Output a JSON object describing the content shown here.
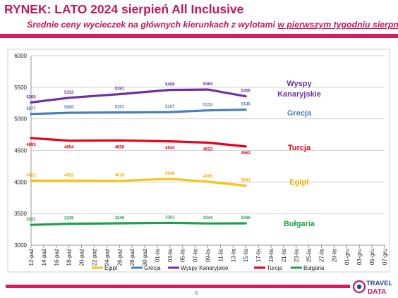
{
  "header": {
    "title": "RYNEK: LATO 2024 sierpień All Inclusive",
    "subtitle_prefix": "Średnie ceny wycieczek na głównych kierunkach z wylotami ",
    "subtitle_underlined": "w pierwszym tygodniu sierpnia"
  },
  "footer": {
    "page_number": "6",
    "logo_line1": "TRAVEL",
    "logo_line2": "DATA"
  },
  "chart_data": {
    "type": "line",
    "title": "",
    "xlabel": "",
    "ylabel": "",
    "ylim": [
      3000,
      6000
    ],
    "yticks": [
      3000,
      3500,
      4000,
      4500,
      5000,
      5500,
      6000
    ],
    "grid": true,
    "legend_position": "bottom",
    "categories": [
      "12-paź",
      "14-paź",
      "16-paź",
      "18-paź",
      "20-paź",
      "22-paź",
      "24-paź",
      "26-paź",
      "28-paź",
      "30-paź",
      "01-lis",
      "03-lis",
      "05-lis",
      "07-lis",
      "09-lis",
      "11-lis",
      "13-lis",
      "15-lis",
      "17-lis",
      "19-lis",
      "21-lis",
      "23-lis",
      "25-lis",
      "27-lis",
      "29-lis",
      "01-gru",
      "03-gru",
      "05-gru",
      "07-gru"
    ],
    "series": [
      {
        "name": "Egipt",
        "color": "#f5c518",
        "x": [
          0,
          3,
          7,
          11,
          14,
          17
        ],
        "values": [
          4022,
          4022,
          4018,
          4049,
          4005,
          3941
        ],
        "label_row": "Egipt",
        "label_color": "#f0b400",
        "data_label_color": "#e8b400"
      },
      {
        "name": "Grecja",
        "color": "#4a7ebb",
        "x": [
          0,
          3,
          7,
          11,
          14,
          17
        ],
        "values": [
          5077,
          5095,
          5101,
          5107,
          5133,
          5145
        ],
        "label_row": "Grecja",
        "label_color": "#4a7ebb",
        "data_label_color": "#4a7ebb"
      },
      {
        "name": "Wyspy Kanaryjskie",
        "color": "#7030a0",
        "x": [
          0,
          3,
          7,
          11,
          14,
          17
        ],
        "values": [
          5260,
          5333,
          5391,
          5458,
          5464,
          5356
        ],
        "label_row": "Wyspy Kanaryjskie",
        "label_color": "#7030a0",
        "data_label_color": "#7030a0"
      },
      {
        "name": "Turcja",
        "color": "#e8001c",
        "x": [
          0,
          3,
          7,
          11,
          14,
          17
        ],
        "values": [
          4695,
          4654,
          4658,
          4644,
          4623,
          4562
        ],
        "label_row": "Turcja",
        "label_color": "#e8001c",
        "data_label_color": "#e8001c"
      },
      {
        "name": "Bułgaria",
        "color": "#1ea04b",
        "x": [
          0,
          3,
          7,
          11,
          14,
          17
        ],
        "values": [
          3321,
          3339,
          3346,
          3353,
          3344,
          3346
        ],
        "label_row": "Bułgaria",
        "label_color": "#1ea04b",
        "data_label_color": "#1ea04b"
      }
    ],
    "side_labels": [
      {
        "series": "Wyspy Kanaryjskie",
        "lines": [
          "Wyspy",
          "Kanaryjskie"
        ]
      },
      {
        "series": "Grecja",
        "lines": [
          "Grecja"
        ]
      },
      {
        "series": "Turcja",
        "lines": [
          "Turcja"
        ]
      },
      {
        "series": "Egipt",
        "lines": [
          "Egipt"
        ]
      },
      {
        "series": "Bułgaria",
        "lines": [
          "Bułgaria"
        ]
      }
    ]
  }
}
